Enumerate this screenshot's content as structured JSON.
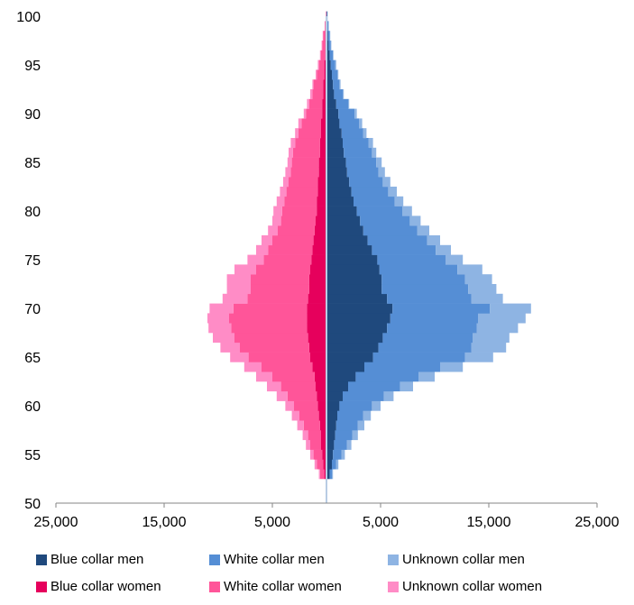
{
  "chart_data": {
    "type": "bar",
    "orientation": "horizontal",
    "stacked": true,
    "title": "",
    "xlabel": "",
    "ylabel": "",
    "xlim": [
      -25000,
      25000
    ],
    "ylim": [
      50,
      100
    ],
    "x_ticks": [
      -25000,
      -15000,
      -5000,
      5000,
      15000,
      25000
    ],
    "x_tick_labels": [
      "25,000",
      "15,000",
      "5,000",
      "5,000",
      "15,000",
      "25,000"
    ],
    "y_ticks": [
      50,
      55,
      60,
      65,
      70,
      75,
      80,
      85,
      90,
      95,
      100
    ],
    "y_tick_labels": [
      "50",
      "55",
      "60",
      "65",
      "70",
      "75",
      "80",
      "85",
      "90",
      "95",
      "100"
    ],
    "grid": false,
    "legend_position": "bottom",
    "categories": [
      50,
      51,
      52,
      53,
      54,
      55,
      56,
      57,
      58,
      59,
      60,
      61,
      62,
      63,
      64,
      65,
      66,
      67,
      68,
      69,
      70,
      71,
      72,
      73,
      74,
      75,
      76,
      77,
      78,
      79,
      80,
      81,
      82,
      83,
      84,
      85,
      86,
      87,
      88,
      89,
      90,
      91,
      92,
      93,
      94,
      95,
      96,
      97,
      98,
      99,
      100
    ],
    "series": [
      {
        "name": "Blue collar men",
        "side": "right",
        "color": "#1f497d",
        "values": [
          0,
          0,
          0,
          300,
          500,
          600,
          700,
          800,
          900,
          1000,
          1200,
          1500,
          2000,
          2700,
          3500,
          4300,
          4800,
          5200,
          5600,
          5900,
          6100,
          5600,
          5100,
          5100,
          4900,
          4700,
          4200,
          3800,
          3400,
          3100,
          2800,
          2500,
          2300,
          2100,
          1900,
          1800,
          1600,
          1500,
          1400,
          1200,
          1100,
          900,
          700,
          600,
          500,
          400,
          300,
          200,
          150,
          100,
          50
        ]
      },
      {
        "name": "White collar men",
        "side": "right",
        "color": "#558ed5",
        "values": [
          0,
          0,
          0,
          200,
          400,
          800,
          1200,
          1600,
          2000,
          2400,
          3000,
          3800,
          4800,
          5800,
          7000,
          8500,
          8600,
          8300,
          8300,
          8100,
          9000,
          7800,
          8000,
          7700,
          7200,
          6300,
          5900,
          5500,
          5000,
          4600,
          4200,
          3800,
          3400,
          3100,
          2900,
          2800,
          2600,
          2400,
          2000,
          1800,
          1500,
          1100,
          800,
          600,
          500,
          400,
          300,
          200,
          150,
          100,
          50
        ]
      },
      {
        "name": "Unknown collar men",
        "side": "right",
        "color": "#8eb4e3",
        "values": [
          0,
          0,
          0,
          100,
          200,
          300,
          400,
          500,
          600,
          700,
          800,
          900,
          1200,
          1500,
          2100,
          2600,
          3200,
          3400,
          3800,
          4400,
          3800,
          2900,
          2600,
          2500,
          2300,
          1600,
          1400,
          1200,
          1100,
          1000,
          900,
          800,
          800,
          700,
          600,
          500,
          400,
          400,
          300,
          300,
          200,
          100,
          100,
          100,
          100,
          100,
          50,
          50,
          50,
          0,
          0
        ]
      },
      {
        "name": "Blue collar women",
        "side": "left",
        "color": "#e6005c",
        "values": [
          0,
          0,
          0,
          200,
          300,
          400,
          500,
          500,
          600,
          700,
          800,
          900,
          1000,
          1100,
          1300,
          1500,
          1600,
          1700,
          1800,
          1800,
          1800,
          1700,
          1600,
          1600,
          1500,
          1400,
          1300,
          1200,
          1100,
          1000,
          900,
          900,
          800,
          800,
          700,
          700,
          600,
          600,
          500,
          500,
          400,
          400,
          300,
          300,
          200,
          200,
          100,
          100,
          100,
          50,
          0
        ]
      },
      {
        "name": "White collar women",
        "side": "left",
        "color": "#ff5599",
        "values": [
          0,
          0,
          0,
          400,
          600,
          800,
          1000,
          1200,
          1500,
          1800,
          2200,
          2700,
          3200,
          3900,
          4700,
          5700,
          6400,
          6800,
          7000,
          7200,
          6800,
          5600,
          5400,
          5400,
          5000,
          4400,
          4100,
          3800,
          3400,
          3200,
          3200,
          3000,
          2900,
          2700,
          2600,
          2500,
          2500,
          2300,
          2100,
          1800,
          1500,
          1200,
          1000,
          900,
          700,
          500,
          400,
          300,
          200,
          100,
          50
        ]
      },
      {
        "name": "Unknown collar women",
        "side": "left",
        "color": "#ff8cc6",
        "values": [
          0,
          0,
          0,
          100,
          200,
          300,
          400,
          500,
          600,
          700,
          800,
          1000,
          1300,
          1500,
          1600,
          1700,
          1800,
          2000,
          2100,
          2000,
          2200,
          2300,
          2200,
          2200,
          2000,
          1500,
          1100,
          1000,
          900,
          800,
          800,
          700,
          600,
          500,
          500,
          400,
          400,
          400,
          300,
          300,
          200,
          200,
          200,
          100,
          100,
          100,
          100,
          50,
          50,
          0,
          0
        ]
      }
    ]
  }
}
